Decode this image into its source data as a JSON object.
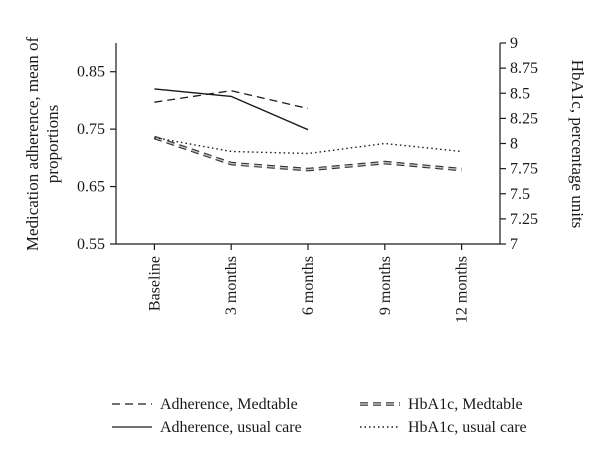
{
  "chart_data": {
    "type": "line",
    "categories": [
      "Baseline",
      "3 months",
      "6 months",
      "9 months",
      "12 months"
    ],
    "y_left": {
      "label_lines": [
        "Medication adherence, mean of",
        "proportions"
      ],
      "ticks": [
        "0.85",
        "0.75",
        "0.65",
        "0.55"
      ],
      "tick_values": [
        0.85,
        0.75,
        0.65,
        0.55
      ],
      "ylim": [
        0.55,
        0.9
      ]
    },
    "y_right": {
      "label": "HbA1c, percentage units",
      "ticks": [
        "9",
        "8.75",
        "8.5",
        "8.25",
        "8",
        "7.75",
        "7.5",
        "7.25",
        "7"
      ],
      "tick_values": [
        9,
        8.75,
        8.5,
        8.25,
        8,
        7.75,
        7.5,
        7.25,
        7
      ],
      "ylim": [
        7,
        9
      ]
    },
    "series": [
      {
        "name": "Adherence, Medtable",
        "axis": "left",
        "style": "dashed",
        "values": [
          0.797,
          0.817,
          0.786,
          null,
          null
        ]
      },
      {
        "name": "Adherence, usual care",
        "axis": "left",
        "style": "solid",
        "values": [
          0.82,
          0.807,
          0.749,
          null,
          null
        ]
      },
      {
        "name": "HbA1c, Medtable",
        "axis": "right",
        "style": "double-dashed",
        "values": [
          8.06,
          7.8,
          7.74,
          7.81,
          7.74
        ]
      },
      {
        "name": "HbA1c, usual care",
        "axis": "right",
        "style": "dotted",
        "values": [
          8.06,
          7.92,
          7.9,
          8.0,
          7.92
        ]
      }
    ],
    "grid": false,
    "legend_position": "bottom"
  }
}
